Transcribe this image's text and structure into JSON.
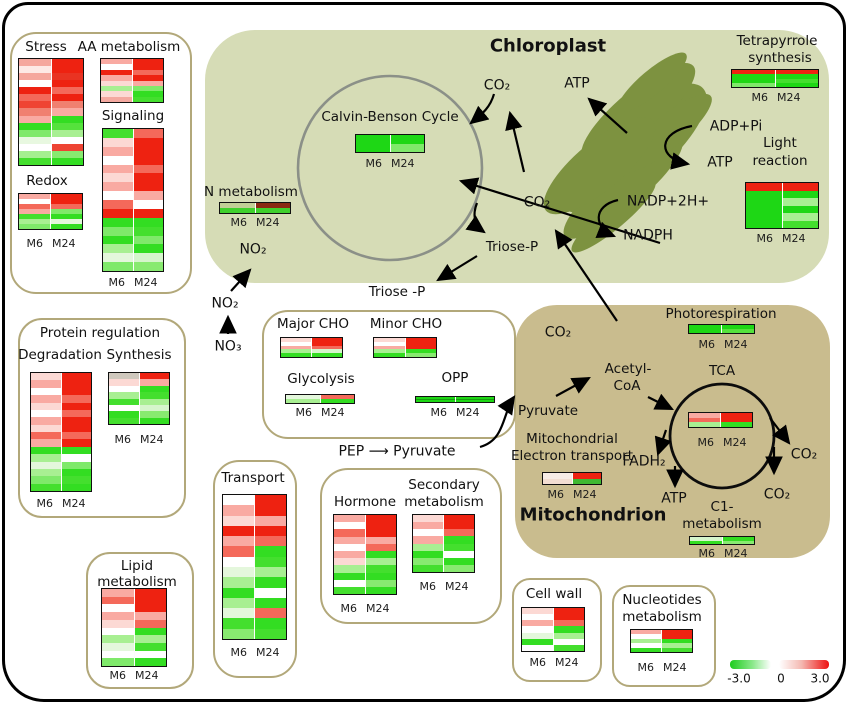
{
  "labels": {
    "m6": "M6",
    "m24": "M24"
  },
  "legend": {
    "min": "-3.0",
    "mid": "0",
    "max": "3.0"
  },
  "texts": {
    "stress": "Stress",
    "aa": "AA metabolism",
    "signaling": "Signaling",
    "redox": "Redox",
    "chloroplast_title": "Chloroplast",
    "calvin": "Calvin-Benson Cycle",
    "co2_top": "CO₂",
    "atp_top": "ATP",
    "adp_pi": "ADP+Pi",
    "atp_thylakoid": "ATP",
    "nadp": "NADP+2H+",
    "nadph": "NADPH",
    "tetra1": "Tetrapyrrole",
    "tetra2": "synthesis",
    "light1": "Light",
    "light2": "reaction",
    "nmet": "N metabolism",
    "no2_in": "NO₂",
    "no2_out": "NO₂",
    "no3": "NO₃",
    "co2_mid": "CO₂",
    "triosep_in": "Triose-P",
    "triosep_out": "Triose -P",
    "major_cho": "Major  CHO",
    "minor_cho": "Minor  CHO",
    "glycolysis": "Glycolysis",
    "opp": "OPP",
    "pep_pyruvate": "PEP ⟶ Pyruvate",
    "protein_title": "Protein regulation",
    "degradation": "Degradation",
    "synthesis": "Synthesis",
    "lipid1": "Lipid",
    "lipid2": "metabolism",
    "transport": "Transport",
    "hormone": "Hormone",
    "secondary1": "Secondary",
    "secondary2": "metabolism",
    "cellwall": "Cell wall",
    "nuc1": "Nucleotides",
    "nuc2": "metabolism",
    "mitochondrion_title": "Mitochondrion",
    "co2_mito": "CO₂",
    "photoresp": "Photorespiration",
    "acetyl1": "Acetyl-",
    "acetyl2": "CoA",
    "tca": "TCA",
    "pyruvate": "Pyruvate",
    "met1": "Mitochondrial",
    "met2": "Electron transport",
    "fadh2": "FADH₂",
    "atp_mito": "ATP",
    "c1a": "C1-",
    "c1b": "metabolism",
    "co2_r1": "CO₂",
    "co2_r2": "CO₂"
  },
  "heatmaps": {
    "stress": {
      "m6": [
        "#f5a79e",
        "#fde9e6",
        "#f5a79e",
        "#ffffff",
        "#ee2211",
        "#f4695a",
        "#ef4433",
        "#f08070",
        "#f9aaa2",
        "#33dd22",
        "#7fe96a",
        "#e8f8e0",
        "#ffffff",
        "#a5ef90",
        "#44df2e"
      ],
      "m24": [
        "#ee2211",
        "#ee2211",
        "#e93322",
        "#ee2211",
        "#f4695a",
        "#ee2211",
        "#f08070",
        "#f9aaa2",
        "#33dd22",
        "#55e23c",
        "#a8ef92",
        "#ffffff",
        "#ee4433",
        "#88ea70",
        "#33dd22"
      ]
    },
    "aa": {
      "m6": [
        "#f9aaa2",
        "#ffffff",
        "#ee2211",
        "#f9aaa2",
        "#fcd9d4",
        "#a8ef92",
        "#fcd9d4",
        "#f4a9a0"
      ],
      "m24": [
        "#ee2211",
        "#ee2211",
        "#f4695a",
        "#ee2211",
        "#f9aaa2",
        "#7fe96a",
        "#33dd22",
        "#44df2e"
      ]
    },
    "signaling": {
      "m6": [
        "#44df2e",
        "#fcd9d4",
        "#f9aaa2",
        "#ffffff",
        "#f9aaa2",
        "#fcd9d4",
        "#f9aaa2",
        "#ffffff",
        "#f4695a",
        "#ee2211",
        "#33dd22",
        "#7fe96a",
        "#33dd22",
        "#a8ef92",
        "#e4f7dc",
        "#7fe96a"
      ],
      "m24": [
        "#f4695a",
        "#ee2211",
        "#ee2211",
        "#ee2211",
        "#f4695a",
        "#ee2211",
        "#ee2211",
        "#f9aaa2",
        "#ffffff",
        "#ee2211",
        "#33dd22",
        "#44df2e",
        "#7fe96a",
        "#33dd22",
        "#d6f5cc",
        "#88ea70"
      ]
    },
    "redox": {
      "m6": [
        "#f9aaa2",
        "#ffffff",
        "#f4695a",
        "#f9aaa2",
        "#44df2e",
        "#a8ef92",
        "#7fe96a"
      ],
      "m24": [
        "#ee2211",
        "#ee2211",
        "#f4695a",
        "#7fe96a",
        "#33dd22",
        "#e4f7dc",
        "#33dd22"
      ]
    },
    "calvin": {
      "m6": [
        "#1ed715",
        "#1ed715"
      ],
      "m24": [
        "#1ed715",
        "#7fe96a"
      ]
    },
    "tetrapyrrole": {
      "m6": [
        "#ee2211",
        "#1ed715",
        "#1ed715",
        "#7fe96a"
      ],
      "m24": [
        "#ee2211",
        "#1ed715",
        "#44df2e",
        "#1ed715"
      ]
    },
    "light": {
      "m6": [
        "#ee2211",
        "#1ed715",
        "#1ed715",
        "#1ed715",
        "#1ed715",
        "#1ed715"
      ],
      "m24": [
        "#ee2211",
        "#1ed715",
        "#a8ef92",
        "#1ed715",
        "#a8ef92",
        "#44df2e"
      ]
    },
    "nmet": {
      "m6": [
        "#c2cf96",
        "#3fd02c"
      ],
      "m24": [
        "#8a2a12",
        "#3fd02c"
      ]
    },
    "major_cho": {
      "m6": [
        "#fcd9d4",
        "#ffffff",
        "#f9aaa2",
        "#a8ef92",
        "#33dd22"
      ],
      "m24": [
        "#ee2211",
        "#ee2211",
        "#f4695a",
        "#d6f5cc",
        "#33dd22"
      ]
    },
    "minor_cho": {
      "m6": [
        "#fcd9d4",
        "#ffffff",
        "#f9aaa2",
        "#a8ef92",
        "#33dd22"
      ],
      "m24": [
        "#ee2211",
        "#ee2211",
        "#ee2211",
        "#33dd22",
        "#88ea70"
      ]
    },
    "glycolysis": {
      "m6": [
        "#e4f7dc",
        "#a8ef92"
      ],
      "m24": [
        "#f4695a",
        "#33dd22"
      ]
    },
    "opp": {
      "m6": [
        "#1ed715",
        "#169c10",
        "#1ed715"
      ],
      "m24": [
        "#1ed715",
        "#169c10",
        "#1ed715"
      ]
    },
    "degradation": {
      "m6": [
        "#fcd9d4",
        "#f9aaa2",
        "#ffffff",
        "#f9aaa2",
        "#fcd9d4",
        "#ffffff",
        "#f9aaa2",
        "#fcd9d4",
        "#f4695a",
        "#f9aaa2",
        "#33dd22",
        "#a8ef92",
        "#e4f7dc",
        "#a8ef92",
        "#7fe96a",
        "#44df2e"
      ],
      "m24": [
        "#ee2211",
        "#ee2211",
        "#ee2211",
        "#f4695a",
        "#ee2211",
        "#f4695a",
        "#ee2211",
        "#ee2211",
        "#f4695a",
        "#ee2211",
        "#33dd22",
        "#ffffff",
        "#7fe96a",
        "#33dd22",
        "#44df2e",
        "#33dd22"
      ]
    },
    "synthesis": {
      "m6": [
        "#cfc8bd",
        "#fcd9d4",
        "#ffffff",
        "#a8ef92",
        "#44df2e",
        "#ffffff",
        "#33dd22",
        "#44df2e"
      ],
      "m24": [
        "#ee2211",
        "#f9aaa2",
        "#33dd22",
        "#44df2e",
        "#a8ef92",
        "#d6f5cc",
        "#88ea70",
        "#33dd22"
      ]
    },
    "lipid": {
      "m6": [
        "#f9aaa2",
        "#f4695a",
        "#ffffff",
        "#f9aaa2",
        "#fcd9d4",
        "#ffffff",
        "#a8ef92",
        "#e4f7dc",
        "#ffffff",
        "#7fe96a"
      ],
      "m24": [
        "#ee2211",
        "#ee2211",
        "#ee2211",
        "#f9aaa2",
        "#f4695a",
        "#33dd22",
        "#a8ef92",
        "#44df2e",
        "#ffffff",
        "#33dd22"
      ]
    },
    "transport": {
      "m6": [
        "#ffffff",
        "#f9aaa2",
        "#fcd9d4",
        "#ee2211",
        "#f9aaa2",
        "#f4695a",
        "#ffffff",
        "#e4f7dc",
        "#a8ef92",
        "#33dd22",
        "#a8ef92",
        "#e4f7dc",
        "#44df2e",
        "#88ea70"
      ],
      "m24": [
        "#ee2211",
        "#ee2211",
        "#f9aaa2",
        "#ee2211",
        "#f4695a",
        "#33dd22",
        "#44df2e",
        "#a8ef92",
        "#33dd22",
        "#ffffff",
        "#33dd22",
        "#f4695a",
        "#33dd22",
        "#44df2e"
      ]
    },
    "hormone": {
      "m6": [
        "#f9aaa2",
        "#ffffff",
        "#f4695a",
        "#f9aaa2",
        "#ffffff",
        "#f9aaa2",
        "#fcd9d4",
        "#a8ef92",
        "#33dd22",
        "#ffffff",
        "#44df2e"
      ],
      "m24": [
        "#ee2211",
        "#ee2211",
        "#ee2211",
        "#f9aaa2",
        "#f4695a",
        "#33dd22",
        "#a8ef92",
        "#44df2e",
        "#33dd22",
        "#88ea70",
        "#33dd22"
      ]
    },
    "secondary": {
      "m6": [
        "#fcd9d4",
        "#f9aaa2",
        "#ffffff",
        "#f9aaa2",
        "#a8ef92",
        "#33dd22",
        "#88ea70",
        "#44df2e"
      ],
      "m24": [
        "#ee2211",
        "#ee2211",
        "#f4695a",
        "#33dd22",
        "#44df2e",
        "#ffffff",
        "#33dd22",
        "#88ea70"
      ]
    },
    "met": {
      "m6": [
        "#f7ece6",
        "#f3ded2"
      ],
      "m24": [
        "#ee2211",
        "#3fb832"
      ]
    },
    "tca": {
      "m6": [
        "#f9aaa2",
        "#f4695a",
        "#a8ef92"
      ],
      "m24": [
        "#ee2211",
        "#ee2211",
        "#33dd22"
      ]
    },
    "photoresp": {
      "m6": [
        "#1ed715",
        "#1ed715"
      ],
      "m24": [
        "#1ed715",
        "#55e23c"
      ]
    },
    "c1": {
      "m6": [
        "#d6f5cc",
        "#33dd22"
      ],
      "m24": [
        "#33dd22",
        "#88ea70"
      ]
    },
    "cellwall": {
      "m6": [
        "#fcd9d4",
        "#ffffff",
        "#f9aaa2",
        "#ffffff",
        "#e4f7dc",
        "#33dd22",
        "#ffffff"
      ],
      "m24": [
        "#ee2211",
        "#ee2211",
        "#f4695a",
        "#33dd22",
        "#a8ef92",
        "#ffffff",
        "#44df2e"
      ]
    },
    "nucleotides": {
      "m6": [
        "#f9aaa2",
        "#ffffff",
        "#a8ef92",
        "#ffffff",
        "#33dd22"
      ],
      "m24": [
        "#ee2211",
        "#ee2211",
        "#33dd22",
        "#a8ef92",
        "#44df2e"
      ]
    }
  }
}
